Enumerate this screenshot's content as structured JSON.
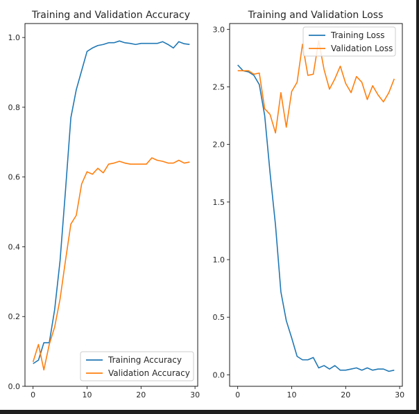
{
  "figure": {
    "background": "#ffffff",
    "page_background": "#1f1f1f"
  },
  "chart_data": [
    {
      "type": "line",
      "title": "Training and Validation Accuracy",
      "xlabel": "",
      "ylabel": "",
      "xlim": [
        -1.5,
        30.5
      ],
      "ylim": [
        0.0,
        1.04
      ],
      "xticks": [
        0,
        10,
        20,
        30
      ],
      "yticks": [
        0.0,
        0.2,
        0.4,
        0.6,
        0.8,
        1.0
      ],
      "xtick_labels": [
        "0",
        "10",
        "20",
        "30"
      ],
      "ytick_labels": [
        "0.0",
        "0.2",
        "0.4",
        "0.6",
        "0.8",
        "1.0"
      ],
      "grid": false,
      "legend": {
        "position": "lower right"
      },
      "x": [
        0,
        1,
        2,
        3,
        4,
        5,
        6,
        7,
        8,
        9,
        10,
        11,
        12,
        13,
        14,
        15,
        16,
        17,
        18,
        19,
        20,
        21,
        22,
        23,
        24,
        25,
        26,
        27,
        28,
        29
      ],
      "series": [
        {
          "name": "Training Accuracy",
          "color": "#1f77b4",
          "values": [
            0.065,
            0.075,
            0.125,
            0.125,
            0.22,
            0.36,
            0.56,
            0.77,
            0.85,
            0.905,
            0.96,
            0.97,
            0.977,
            0.98,
            0.985,
            0.985,
            0.99,
            0.985,
            0.983,
            0.98,
            0.983,
            0.983,
            0.983,
            0.983,
            0.988,
            0.98,
            0.97,
            0.988,
            0.982,
            0.98
          ]
        },
        {
          "name": "Validation Accuracy",
          "color": "#ff7f0e",
          "values": [
            0.07,
            0.12,
            0.047,
            0.12,
            0.17,
            0.25,
            0.36,
            0.465,
            0.49,
            0.58,
            0.615,
            0.608,
            0.625,
            0.612,
            0.637,
            0.64,
            0.645,
            0.64,
            0.637,
            0.637,
            0.637,
            0.637,
            0.655,
            0.648,
            0.645,
            0.64,
            0.64,
            0.648,
            0.64,
            0.643
          ]
        }
      ]
    },
    {
      "type": "line",
      "title": "Training and Validation Loss",
      "xlabel": "",
      "ylabel": "",
      "xlim": [
        -1.5,
        30.5
      ],
      "ylim": [
        -0.1,
        3.05
      ],
      "xticks": [
        0,
        10,
        20,
        30
      ],
      "yticks": [
        0.0,
        0.5,
        1.0,
        1.5,
        2.0,
        2.5,
        3.0
      ],
      "xtick_labels": [
        "0",
        "10",
        "20",
        "30"
      ],
      "ytick_labels": [
        "0.0",
        "0.5",
        "1.0",
        "1.5",
        "2.0",
        "2.5",
        "3.0"
      ],
      "grid": false,
      "legend": {
        "position": "upper right"
      },
      "x": [
        0,
        1,
        2,
        3,
        4,
        5,
        6,
        7,
        8,
        9,
        10,
        11,
        12,
        13,
        14,
        15,
        16,
        17,
        18,
        19,
        20,
        21,
        22,
        23,
        24,
        25,
        26,
        27,
        28,
        29
      ],
      "series": [
        {
          "name": "Training Loss",
          "color": "#1f77b4",
          "values": [
            2.69,
            2.64,
            2.63,
            2.6,
            2.52,
            2.25,
            1.75,
            1.3,
            0.72,
            0.47,
            0.32,
            0.16,
            0.13,
            0.13,
            0.15,
            0.06,
            0.08,
            0.05,
            0.08,
            0.04,
            0.04,
            0.05,
            0.06,
            0.04,
            0.06,
            0.04,
            0.05,
            0.05,
            0.03,
            0.04
          ]
        },
        {
          "name": "Validation Loss",
          "color": "#ff7f0e",
          "values": [
            2.64,
            2.64,
            2.64,
            2.61,
            2.62,
            2.31,
            2.26,
            2.1,
            2.45,
            2.15,
            2.46,
            2.54,
            2.87,
            2.6,
            2.61,
            2.9,
            2.65,
            2.48,
            2.57,
            2.68,
            2.53,
            2.45,
            2.59,
            2.54,
            2.39,
            2.51,
            2.43,
            2.37,
            2.45,
            2.57
          ]
        }
      ]
    }
  ]
}
